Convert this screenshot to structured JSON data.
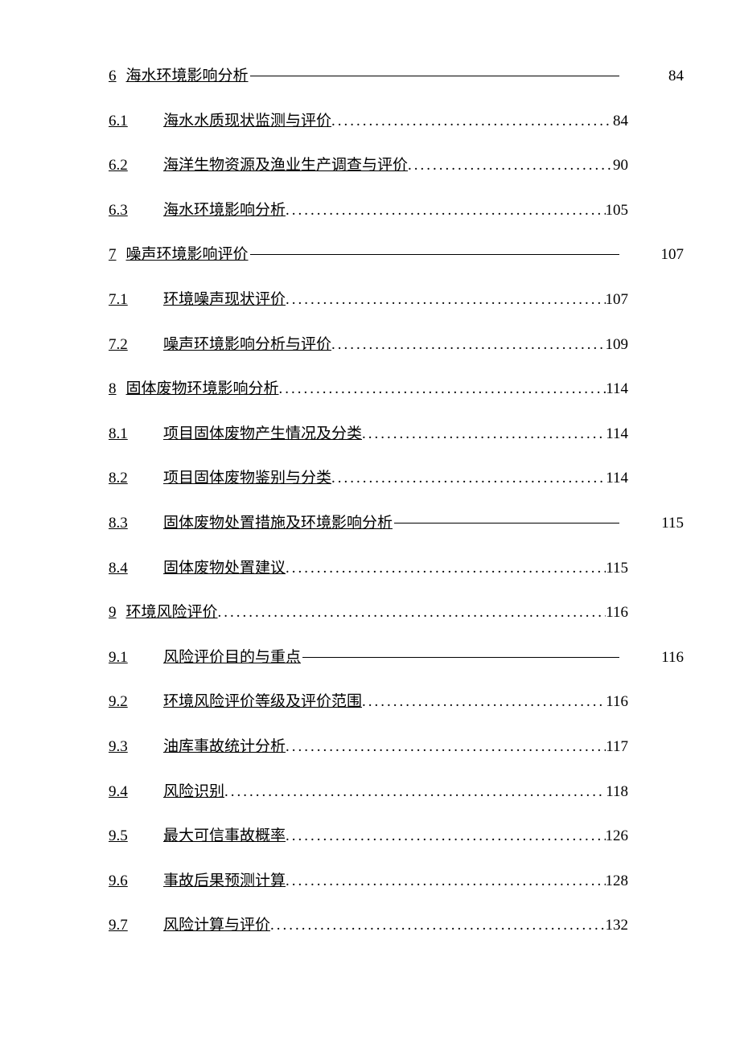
{
  "toc": {
    "text_color": "#000000",
    "font_size": 19,
    "background_color": "#ffffff",
    "leader_dots": ".....................................................................................................................",
    "entries": [
      {
        "level": 1,
        "number": "6",
        "title": "海水环境影响分析",
        "page": "84",
        "leader": "line",
        "page_pos": "right"
      },
      {
        "level": 2,
        "number": "6.1",
        "title": "海水水质现状监测与评价",
        "page": "84",
        "leader": "dots",
        "page_pos": "inline"
      },
      {
        "level": 2,
        "number": "6.2",
        "title": "海洋生物资源及渔业生产调查与评价",
        "page": "90",
        "leader": "dots",
        "page_pos": "inline"
      },
      {
        "level": 2,
        "number": "6.3",
        "title": "海水环境影响分析",
        "page": "105",
        "leader": "dots",
        "page_pos": "inline"
      },
      {
        "level": 1,
        "number": "7",
        "title": "噪声环境影响评价",
        "page": "107",
        "leader": "line",
        "page_pos": "right"
      },
      {
        "level": 2,
        "number": "7.1",
        "title": "环境噪声现状评价",
        "page": "107",
        "leader": "dots",
        "page_pos": "inline"
      },
      {
        "level": 2,
        "number": "7.2",
        "title": "噪声环境影响分析与评价",
        "page": "109",
        "leader": "dots",
        "page_pos": "inline"
      },
      {
        "level": 1,
        "number": "8",
        "title": "固体废物环境影响分析",
        "page": "114",
        "leader": "dots",
        "page_pos": "inline"
      },
      {
        "level": 2,
        "number": "8.1",
        "title": "项目固体废物产生情况及分类",
        "page": "114",
        "leader": "dots",
        "page_pos": "inline"
      },
      {
        "level": 2,
        "number": "8.2",
        "title": "项目固体废物鉴别与分类",
        "page": "114",
        "leader": "dots",
        "page_pos": "inline"
      },
      {
        "level": 2,
        "number": "8.3",
        "title": "固体废物处置措施及环境影响分析",
        "page": "115",
        "leader": "line",
        "page_pos": "right"
      },
      {
        "level": 2,
        "number": "8.4",
        "title": "固体废物处置建议",
        "page": "115",
        "leader": "dots",
        "page_pos": "inline"
      },
      {
        "level": 1,
        "number": "9",
        "title": "环境风险评价",
        "page": "116",
        "leader": "dots",
        "page_pos": "inline"
      },
      {
        "level": 2,
        "number": "9.1",
        "title": "风险评价目的与重点",
        "page": "116",
        "leader": "line",
        "page_pos": "right"
      },
      {
        "level": 2,
        "number": "9.2",
        "title": "环境风险评价等级及评价范围",
        "page": "116",
        "leader": "dots",
        "page_pos": "inline"
      },
      {
        "level": 2,
        "number": "9.3",
        "title": "油库事故统计分析",
        "page": "117",
        "leader": "dots",
        "page_pos": "inline"
      },
      {
        "level": 2,
        "number": "9.4",
        "title": "风险识别",
        "page": "118",
        "leader": "dots",
        "page_pos": "inline"
      },
      {
        "level": 2,
        "number": "9.5",
        "title": "最大可信事故概率",
        "page": "126",
        "leader": "dots",
        "page_pos": "inline"
      },
      {
        "level": 2,
        "number": "9.6",
        "title": "事故后果预测计算",
        "page": "128",
        "leader": "dots",
        "page_pos": "inline"
      },
      {
        "level": 2,
        "number": "9.7",
        "title": "风险计算与评价",
        "page": "132",
        "leader": "dots",
        "page_pos": "inline"
      }
    ]
  }
}
